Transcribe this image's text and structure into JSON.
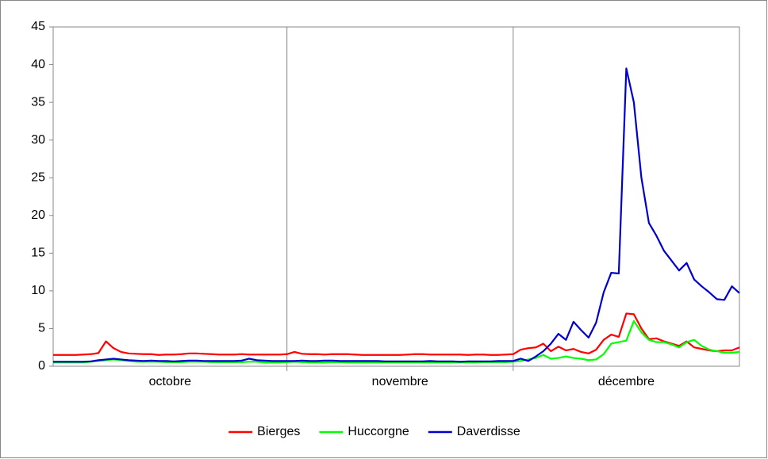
{
  "chart_data": {
    "type": "line",
    "categories": [
      "octobre",
      null,
      null,
      null,
      null,
      null,
      null,
      null,
      null,
      null,
      null,
      null,
      null,
      null,
      null,
      null,
      null,
      null,
      null,
      null,
      null,
      null,
      null,
      null,
      null,
      null,
      null,
      null,
      null,
      null,
      null,
      "novembre",
      null,
      null,
      null,
      null,
      null,
      null,
      null,
      null,
      null,
      null,
      null,
      null,
      null,
      null,
      null,
      null,
      null,
      null,
      null,
      null,
      null,
      null,
      null,
      null,
      null,
      null,
      null,
      null,
      null,
      "décembre",
      null,
      null,
      null,
      null,
      null,
      null,
      null,
      null,
      null,
      null,
      null,
      null,
      null,
      null,
      null,
      null,
      null,
      null,
      null,
      null,
      null,
      null,
      null,
      null,
      null,
      null,
      null,
      null,
      null,
      null
    ],
    "series": [
      {
        "name": "Bierges",
        "color": "#ff0000",
        "values": [
          1.5,
          1.5,
          1.5,
          1.5,
          1.55,
          1.6,
          1.75,
          3.3,
          2.4,
          1.9,
          1.7,
          1.65,
          1.6,
          1.6,
          1.5,
          1.55,
          1.55,
          1.6,
          1.7,
          1.7,
          1.65,
          1.6,
          1.55,
          1.55,
          1.55,
          1.6,
          1.55,
          1.55,
          1.55,
          1.55,
          1.55,
          1.6,
          1.9,
          1.65,
          1.6,
          1.6,
          1.55,
          1.6,
          1.6,
          1.6,
          1.55,
          1.5,
          1.5,
          1.5,
          1.5,
          1.5,
          1.5,
          1.55,
          1.6,
          1.6,
          1.55,
          1.55,
          1.55,
          1.55,
          1.55,
          1.5,
          1.55,
          1.55,
          1.5,
          1.5,
          1.55,
          1.6,
          2.2,
          2.4,
          2.5,
          3.0,
          2.0,
          2.6,
          2.1,
          2.3,
          1.9,
          1.7,
          2.2,
          3.5,
          4.2,
          3.9,
          7.0,
          6.9,
          5.0,
          3.6,
          3.7,
          3.3,
          3.0,
          2.7,
          3.3,
          2.5,
          2.3,
          2.1,
          2.0,
          2.1,
          2.1,
          2.5
        ]
      },
      {
        "name": "Huccorgne",
        "color": "#00ff00",
        "values": [
          0.5,
          0.5,
          0.5,
          0.5,
          0.5,
          0.6,
          0.7,
          0.8,
          0.9,
          0.8,
          0.7,
          0.6,
          0.6,
          0.6,
          0.6,
          0.55,
          0.55,
          0.55,
          0.6,
          0.6,
          0.6,
          0.55,
          0.55,
          0.55,
          0.55,
          0.55,
          0.6,
          0.6,
          0.5,
          0.5,
          0.5,
          0.55,
          0.6,
          0.55,
          0.5,
          0.5,
          0.5,
          0.55,
          0.55,
          0.5,
          0.5,
          0.5,
          0.5,
          0.5,
          0.5,
          0.5,
          0.5,
          0.5,
          0.5,
          0.5,
          0.5,
          0.5,
          0.5,
          0.5,
          0.5,
          0.5,
          0.5,
          0.55,
          0.55,
          0.55,
          0.55,
          0.6,
          0.7,
          0.9,
          1.1,
          1.5,
          1.0,
          1.1,
          1.3,
          1.1,
          1.0,
          0.8,
          0.9,
          1.6,
          3.0,
          3.2,
          3.4,
          6.0,
          4.5,
          3.5,
          3.2,
          3.2,
          2.9,
          2.5,
          3.2,
          3.5,
          2.7,
          2.2,
          2.0,
          1.8,
          1.8,
          1.9
        ]
      },
      {
        "name": "Daverdisse",
        "color": "#0000cc",
        "values": [
          0.6,
          0.6,
          0.6,
          0.6,
          0.6,
          0.65,
          0.8,
          0.9,
          1.0,
          0.9,
          0.8,
          0.75,
          0.7,
          0.75,
          0.7,
          0.7,
          0.65,
          0.7,
          0.75,
          0.75,
          0.7,
          0.7,
          0.7,
          0.7,
          0.7,
          0.75,
          1.0,
          0.8,
          0.75,
          0.7,
          0.7,
          0.7,
          0.7,
          0.75,
          0.7,
          0.7,
          0.75,
          0.75,
          0.7,
          0.7,
          0.7,
          0.7,
          0.7,
          0.7,
          0.65,
          0.65,
          0.65,
          0.65,
          0.65,
          0.65,
          0.7,
          0.65,
          0.65,
          0.65,
          0.6,
          0.65,
          0.65,
          0.65,
          0.65,
          0.7,
          0.7,
          0.7,
          1.0,
          0.7,
          1.3,
          2.0,
          3.0,
          4.3,
          3.5,
          5.9,
          4.8,
          3.8,
          5.8,
          9.8,
          12.4,
          12.3,
          39.5,
          35.0,
          25.0,
          19.0,
          17.3,
          15.3,
          14.0,
          12.7,
          13.7,
          11.5,
          10.6,
          9.8,
          8.9,
          8.8,
          10.6,
          9.7
        ]
      }
    ],
    "ylim": [
      0,
      45
    ],
    "yticks": [
      0,
      5,
      10,
      15,
      20,
      25,
      30,
      35,
      40,
      45
    ],
    "grid": false,
    "legend": "bottom"
  }
}
